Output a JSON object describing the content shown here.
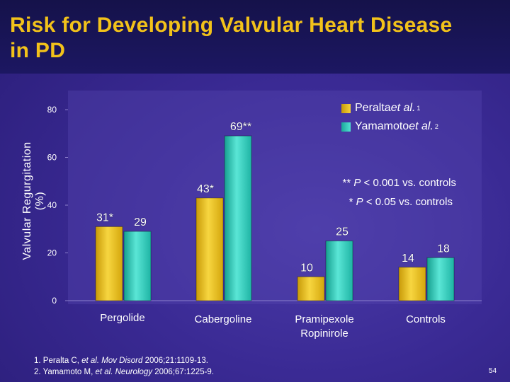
{
  "slide": {
    "title": "Risk for Developing Valvular Heart Disease in PD",
    "page_number": "54"
  },
  "chart_data": {
    "type": "bar",
    "title": "",
    "xlabel": "",
    "ylabel": "Valvular Regurgitation (%)",
    "ylim": [
      0,
      80
    ],
    "yticks": [
      "0",
      "20",
      "40",
      "60",
      "80"
    ],
    "categories": [
      "Pergolide",
      "Cabergoline",
      "Pramipexole Ropinirole",
      "Controls"
    ],
    "category_lines": [
      [
        "Pergolide"
      ],
      [
        "Cabergoline"
      ],
      [
        "Pramipexole",
        "Ropinirole"
      ],
      [
        "Controls"
      ]
    ],
    "series": [
      {
        "name": "Peralta et al.",
        "ref": "1",
        "color": "#e8b80c",
        "values": [
          31,
          43,
          10,
          14
        ],
        "labels": [
          "31*",
          "43*",
          "10",
          "14"
        ]
      },
      {
        "name": "Yamamoto et al.",
        "ref": "2",
        "color": "#2cc8b8",
        "values": [
          29,
          69,
          25,
          18
        ],
        "labels": [
          "29",
          "69**",
          "25",
          "18"
        ]
      }
    ],
    "legend": {
      "position": "top-right",
      "entries": [
        {
          "prefix": "Peralta ",
          "italic": "et al.",
          "sup": "1"
        },
        {
          "prefix": "Yamamoto ",
          "italic": "et al.",
          "sup": "2"
        }
      ]
    },
    "annotations": [
      {
        "pre": "** ",
        "p": "P",
        "post": " < 0.001 vs. controls"
      },
      {
        "pre": "* ",
        "p": "P",
        "post": " < 0.05  vs. controls"
      }
    ]
  },
  "references": [
    {
      "pre": "1. Peralta C, ",
      "italic": "et al. Mov Disord",
      "post": " 2006;21:1109-13."
    },
    {
      "pre": "2. Yamamoto M, ",
      "italic": "et al. Neurology",
      "post": " 2006;67:1225-9."
    }
  ]
}
